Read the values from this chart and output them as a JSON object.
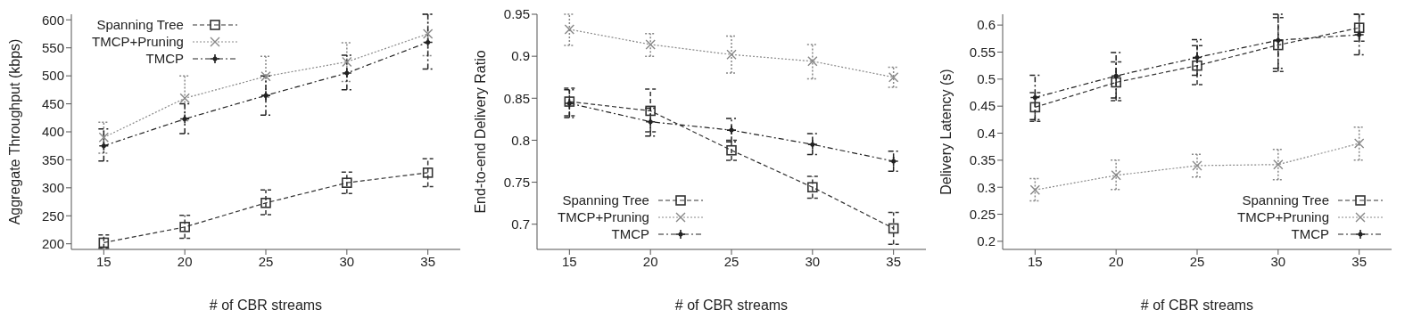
{
  "chart_data": [
    {
      "type": "line",
      "xlabel": "# of CBR streams",
      "ylabel": "Aggregate Throughput (kbps)",
      "x": [
        15,
        20,
        25,
        30,
        35
      ],
      "xlim": [
        13,
        37
      ],
      "xticks": [
        15,
        20,
        25,
        30,
        35
      ],
      "ylim": [
        190,
        610
      ],
      "yticks": [
        200,
        250,
        300,
        350,
        400,
        450,
        500,
        550,
        600
      ],
      "legend": "top left",
      "grid": false,
      "series": [
        {
          "name": "Spanning Tree",
          "color": "#333333",
          "marker": "square",
          "line_style": "dashed",
          "values": [
            202,
            230,
            273,
            309,
            327
          ],
          "errors": [
            [
              192,
              216
            ],
            [
              210,
              251
            ],
            [
              252,
              296
            ],
            [
              290,
              328
            ],
            [
              302,
              352
            ]
          ]
        },
        {
          "name": "TMCP+Pruning",
          "color": "#888888",
          "marker": "x",
          "line_style": "dotted",
          "values": [
            390,
            460,
            499,
            525,
            575
          ],
          "errors": [
            [
              362,
              417
            ],
            [
              420,
              500
            ],
            [
              462,
              535
            ],
            [
              490,
              559
            ],
            [
              536,
              610
            ]
          ]
        },
        {
          "name": "TMCP",
          "color": "#222222",
          "marker": "cross",
          "line_style": "dashdot",
          "values": [
            375,
            423,
            465,
            505,
            560
          ],
          "errors": [
            [
              348,
              405
            ],
            [
              397,
              450
            ],
            [
              430,
              500
            ],
            [
              475,
              537
            ],
            [
              512,
              610
            ]
          ]
        }
      ]
    },
    {
      "type": "line",
      "xlabel": "# of CBR streams",
      "ylabel": "End-to-end Delivery Ratio",
      "x": [
        15,
        20,
        25,
        30,
        35
      ],
      "xlim": [
        13,
        37
      ],
      "xticks": [
        15,
        20,
        25,
        30,
        35
      ],
      "ylim": [
        0.67,
        0.95
      ],
      "yticks": [
        0.7,
        0.75,
        0.8,
        0.85,
        0.9,
        0.95
      ],
      "legend": "bottom left",
      "grid": false,
      "series": [
        {
          "name": "Spanning Tree",
          "color": "#333333",
          "marker": "square",
          "line_style": "dashed",
          "values": [
            0.846,
            0.835,
            0.788,
            0.744,
            0.695
          ],
          "errors": [
            [
              0.829,
              0.862
            ],
            [
              0.81,
              0.861
            ],
            [
              0.776,
              0.8
            ],
            [
              0.731,
              0.757
            ],
            [
              0.676,
              0.714
            ]
          ]
        },
        {
          "name": "TMCP+Pruning",
          "color": "#888888",
          "marker": "x",
          "line_style": "dotted",
          "values": [
            0.932,
            0.914,
            0.902,
            0.894,
            0.875
          ],
          "errors": [
            [
              0.913,
              0.95
            ],
            [
              0.9,
              0.927
            ],
            [
              0.88,
              0.924
            ],
            [
              0.873,
              0.914
            ],
            [
              0.863,
              0.887
            ]
          ]
        },
        {
          "name": "TMCP",
          "color": "#222222",
          "marker": "cross",
          "line_style": "dashdot",
          "values": [
            0.844,
            0.822,
            0.812,
            0.795,
            0.775
          ],
          "errors": [
            [
              0.827,
              0.86
            ],
            [
              0.805,
              0.838
            ],
            [
              0.798,
              0.826
            ],
            [
              0.783,
              0.808
            ],
            [
              0.763,
              0.787
            ]
          ]
        }
      ]
    },
    {
      "type": "line",
      "xlabel": "# of CBR streams",
      "ylabel": "Delivery Latency (s)",
      "x": [
        15,
        20,
        25,
        30,
        35
      ],
      "xlim": [
        13,
        37
      ],
      "xticks": [
        15,
        20,
        25,
        30,
        35
      ],
      "ylim": [
        0.185,
        0.62
      ],
      "yticks": [
        0.2,
        0.25,
        0.3,
        0.35,
        0.4,
        0.45,
        0.5,
        0.55,
        0.6
      ],
      "legend": "bottom right",
      "grid": false,
      "series": [
        {
          "name": "Spanning Tree",
          "color": "#333333",
          "marker": "square",
          "line_style": "dashed",
          "values": [
            0.448,
            0.494,
            0.525,
            0.563,
            0.595
          ],
          "errors": [
            [
              0.422,
              0.475
            ],
            [
              0.46,
              0.532
            ],
            [
              0.49,
              0.562
            ],
            [
              0.514,
              0.614
            ],
            [
              0.57,
              0.62
            ]
          ]
        },
        {
          "name": "TMCP+Pruning",
          "color": "#888888",
          "marker": "x",
          "line_style": "dotted",
          "values": [
            0.295,
            0.322,
            0.34,
            0.342,
            0.381
          ],
          "errors": [
            [
              0.275,
              0.316
            ],
            [
              0.296,
              0.35
            ],
            [
              0.319,
              0.361
            ],
            [
              0.314,
              0.37
            ],
            [
              0.35,
              0.411
            ]
          ]
        },
        {
          "name": "TMCP",
          "color": "#222222",
          "marker": "cross",
          "line_style": "dashdot",
          "values": [
            0.466,
            0.506,
            0.54,
            0.572,
            0.582
          ],
          "errors": [
            [
              0.425,
              0.507
            ],
            [
              0.465,
              0.549
            ],
            [
              0.507,
              0.573
            ],
            [
              0.52,
              0.62
            ],
            [
              0.545,
              0.62
            ]
          ]
        }
      ]
    }
  ]
}
